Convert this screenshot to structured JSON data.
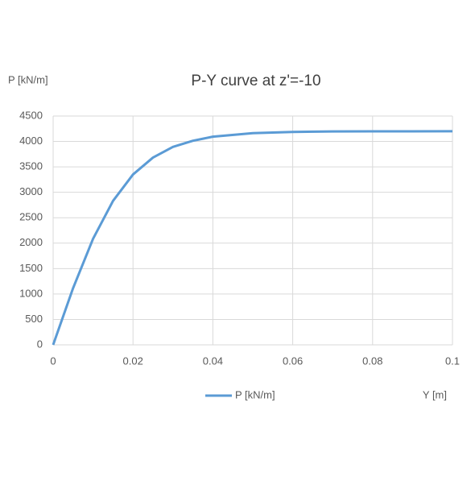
{
  "chart_data": {
    "type": "line",
    "title": "P-Y curve at z'=-10",
    "y_label": "P [kN/m]",
    "x_label": "Y [m]",
    "x": [
      0,
      0.005,
      0.01,
      0.015,
      0.02,
      0.025,
      0.03,
      0.035,
      0.04,
      0.05,
      0.06,
      0.07,
      0.08,
      0.1
    ],
    "series": [
      {
        "name": "P [kN/m]",
        "color": "#5b9bd5",
        "values": [
          0,
          1117,
          2087,
          2831,
          3350,
          3683,
          3893,
          4014,
          4094,
          4164,
          4188,
          4196,
          4199,
          4200
        ]
      }
    ],
    "xlim": [
      0,
      0.1
    ],
    "xticks": [
      0,
      0.02,
      0.04,
      0.06,
      0.08,
      0.1
    ],
    "ylim": [
      0,
      4500
    ],
    "yticks": [
      0,
      500,
      1000,
      1500,
      2000,
      2500,
      3000,
      3500,
      4000,
      4500
    ],
    "grid": true,
    "legend": "bottom"
  }
}
